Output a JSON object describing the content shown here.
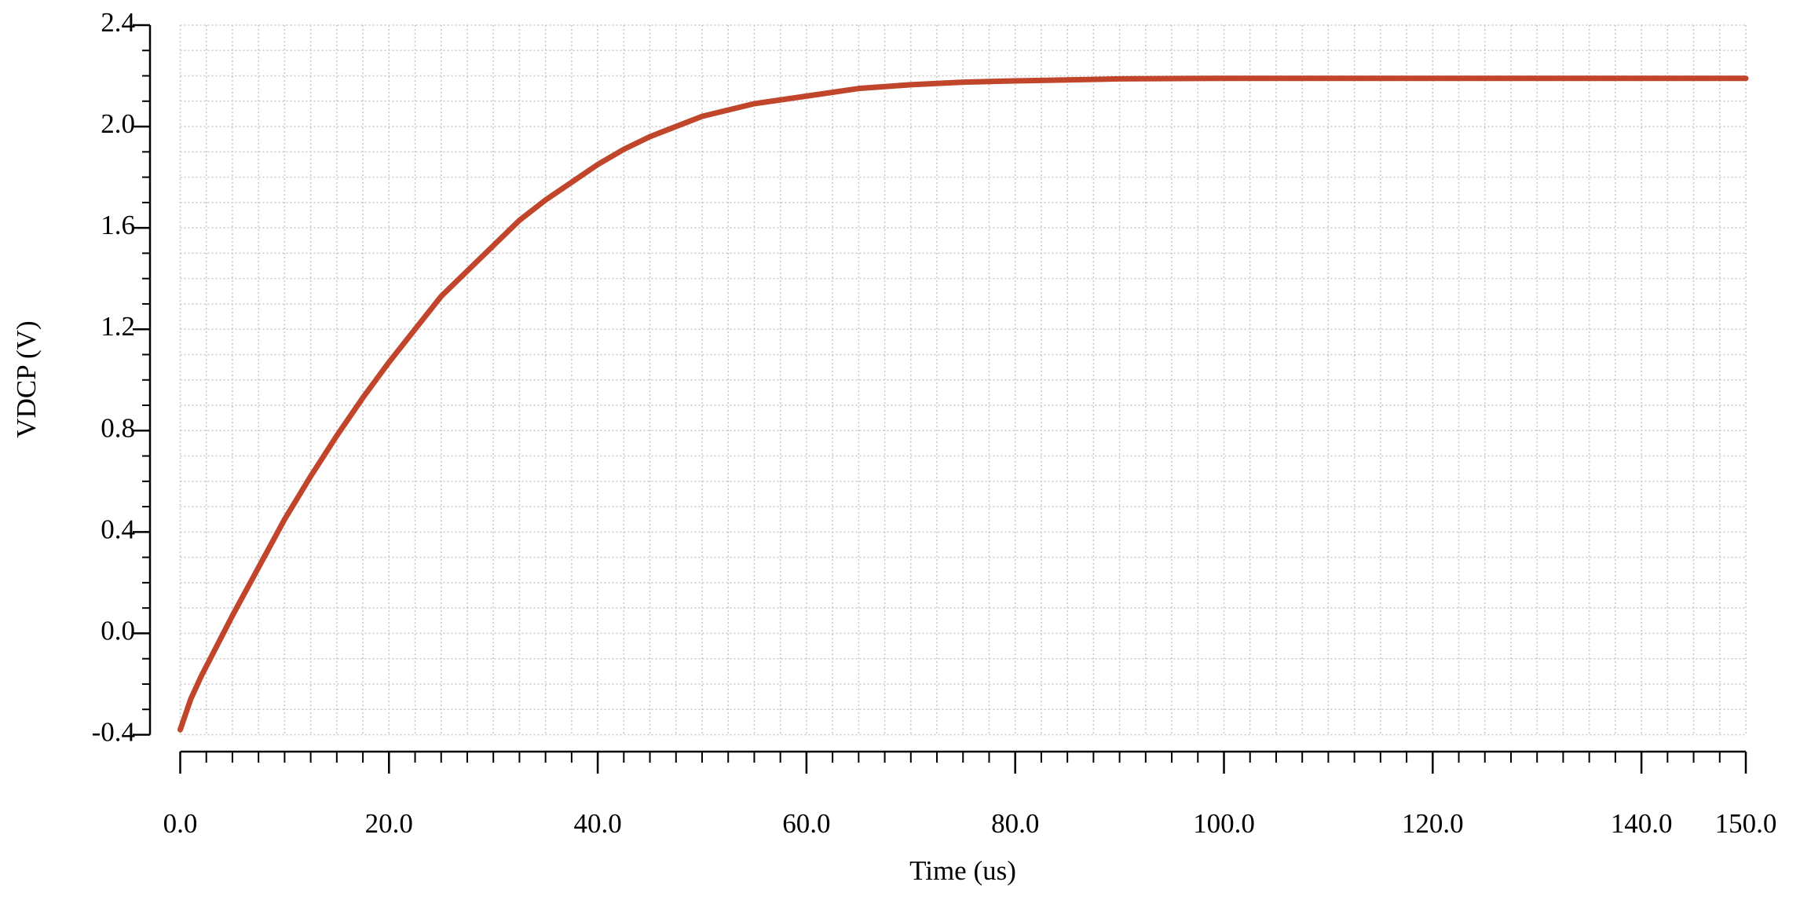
{
  "chart_data": {
    "type": "line",
    "x_label": "Time (us)",
    "y_label": "VDCP (V)",
    "x": [
      0,
      1,
      2,
      3,
      5,
      7.5,
      10,
      12.5,
      15,
      17.5,
      20,
      22.5,
      25,
      27.5,
      30,
      32.5,
      35,
      37.5,
      40,
      42.5,
      45,
      47.5,
      50,
      55,
      60,
      65,
      70,
      75,
      80,
      90,
      100,
      110,
      120,
      130,
      140,
      150
    ],
    "series": [
      {
        "name": "VDCP",
        "color": "#c0452a",
        "values": [
          -0.38,
          -0.26,
          -0.17,
          -0.09,
          0.07,
          0.26,
          0.45,
          0.62,
          0.78,
          0.93,
          1.07,
          1.2,
          1.33,
          1.43,
          1.53,
          1.63,
          1.71,
          1.78,
          1.85,
          1.91,
          1.96,
          2.0,
          2.04,
          2.09,
          2.12,
          2.15,
          2.165,
          2.175,
          2.18,
          2.188,
          2.19,
          2.19,
          2.19,
          2.19,
          2.19,
          2.19
        ]
      }
    ],
    "xlim": [
      0,
      150
    ],
    "xticks": [
      {
        "value": 0,
        "label": "0.0"
      },
      {
        "value": 20,
        "label": "20.0"
      },
      {
        "value": 40,
        "label": "40.0"
      },
      {
        "value": 60,
        "label": "60.0"
      },
      {
        "value": 80,
        "label": "80.0"
      },
      {
        "value": 100,
        "label": "100.0"
      },
      {
        "value": 120,
        "label": "120.0"
      },
      {
        "value": 140,
        "label": "140.0"
      },
      {
        "value": 150,
        "label": "150.0"
      }
    ],
    "ylim": [
      -0.4,
      2.4
    ],
    "yticks": [
      -0.4,
      {
        "value": 0,
        "label": "0.0"
      },
      0.4,
      0.8,
      1.2,
      1.6,
      {
        "value": 2,
        "label": "2.0"
      },
      2.4
    ],
    "x_minor_step": 2.5,
    "y_minor_step": 0.1,
    "grid": true
  }
}
